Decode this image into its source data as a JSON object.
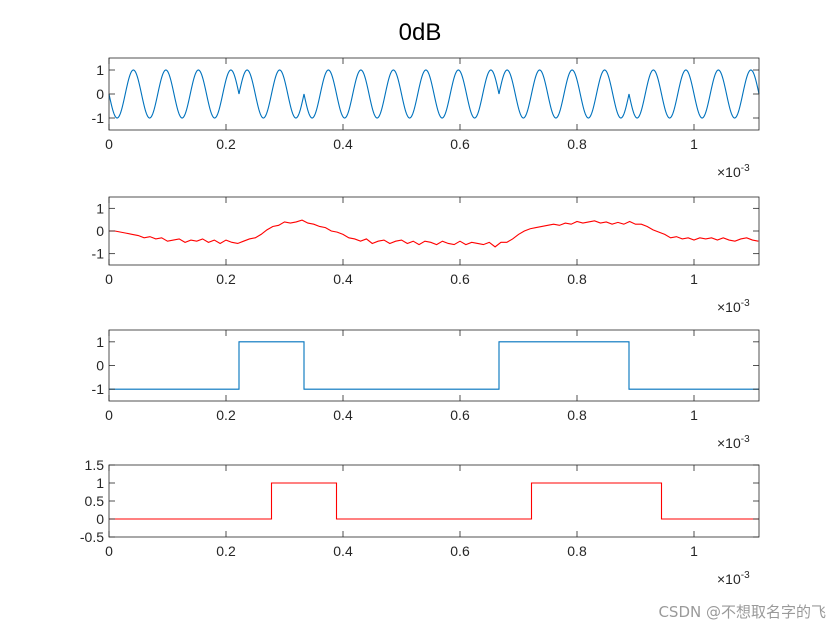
{
  "figure": {
    "title": "0dB",
    "watermark": "CSDN @不想取名字的飞"
  },
  "chart_data": [
    {
      "type": "line",
      "description_kind": "bpsk-modulated",
      "color": "#0072BD",
      "xlim": [
        0,
        0.00111111
      ],
      "ylim": [
        -1.5,
        1.5
      ],
      "xticks": [
        "0",
        "0.2",
        "0.4",
        "0.6",
        "0.8",
        "1"
      ],
      "yticks": [
        "1",
        "0",
        "-1"
      ],
      "x_exponent": "×10-3",
      "bits": [
        -1,
        -1,
        1,
        -1,
        -1,
        -1,
        1,
        1,
        -1,
        -1
      ],
      "bit_period": 0.000111111,
      "carrier_hz": 18000
    },
    {
      "type": "line",
      "color": "#FF0000",
      "xlim": [
        0,
        0.00111111
      ],
      "ylim": [
        -1.5,
        1.5
      ],
      "xticks": [
        "0",
        "0.2",
        "0.4",
        "0.6",
        "0.8",
        "1"
      ],
      "yticks": [
        "1",
        "0",
        "-1"
      ],
      "x_exponent": "×10-3",
      "x_step": 1e-05,
      "values": [
        0,
        0,
        -0.05,
        -0.1,
        -0.15,
        -0.2,
        -0.3,
        -0.25,
        -0.35,
        -0.3,
        -0.45,
        -0.4,
        -0.35,
        -0.5,
        -0.4,
        -0.45,
        -0.35,
        -0.5,
        -0.4,
        -0.55,
        -0.4,
        -0.5,
        -0.55,
        -0.45,
        -0.35,
        -0.3,
        -0.15,
        0.05,
        0.2,
        0.25,
        0.4,
        0.35,
        0.4,
        0.48,
        0.35,
        0.3,
        0.2,
        0.15,
        0,
        -0.05,
        -0.15,
        -0.3,
        -0.35,
        -0.45,
        -0.35,
        -0.55,
        -0.45,
        -0.4,
        -0.55,
        -0.45,
        -0.4,
        -0.55,
        -0.45,
        -0.6,
        -0.45,
        -0.5,
        -0.6,
        -0.45,
        -0.55,
        -0.6,
        -0.45,
        -0.6,
        -0.5,
        -0.55,
        -0.6,
        -0.5,
        -0.7,
        -0.5,
        -0.5,
        -0.35,
        -0.15,
        0,
        0.1,
        0.15,
        0.2,
        0.25,
        0.3,
        0.25,
        0.35,
        0.3,
        0.42,
        0.35,
        0.4,
        0.45,
        0.35,
        0.4,
        0.3,
        0.38,
        0.3,
        0.42,
        0.3,
        0.3,
        0.2,
        0.05,
        -0.05,
        -0.15,
        -0.3,
        -0.25,
        -0.35,
        -0.3,
        -0.4,
        -0.3,
        -0.35,
        -0.3,
        -0.4,
        -0.3,
        -0.4,
        -0.45,
        -0.35,
        -0.3,
        -0.4,
        -0.45
      ]
    },
    {
      "type": "line",
      "description_kind": "step",
      "color": "#0072BD",
      "xlim": [
        0,
        0.00111111
      ],
      "ylim": [
        -1.5,
        1.5
      ],
      "xticks": [
        "0",
        "0.2",
        "0.4",
        "0.6",
        "0.8",
        "1"
      ],
      "yticks": [
        "1",
        "0",
        "-1"
      ],
      "x_exponent": "×10-3",
      "steps": [
        [
          0,
          -1
        ],
        [
          0.000222222,
          1
        ],
        [
          0.000333333,
          -1
        ],
        [
          0.000666667,
          1
        ],
        [
          0.000888889,
          -1
        ]
      ]
    },
    {
      "type": "line",
      "description_kind": "step",
      "color": "#FF0000",
      "xlim": [
        0,
        0.00111111
      ],
      "ylim": [
        -0.5,
        1.5
      ],
      "xticks": [
        "0",
        "0.2",
        "0.4",
        "0.6",
        "0.8",
        "1"
      ],
      "yticks": [
        "1.5",
        "1",
        "0.5",
        "0",
        "-0.5"
      ],
      "x_exponent": "×10-3",
      "steps": [
        [
          0,
          0
        ],
        [
          0.000277778,
          1
        ],
        [
          0.000388889,
          0
        ],
        [
          0.000722222,
          1
        ],
        [
          0.000944444,
          0
        ]
      ]
    }
  ]
}
